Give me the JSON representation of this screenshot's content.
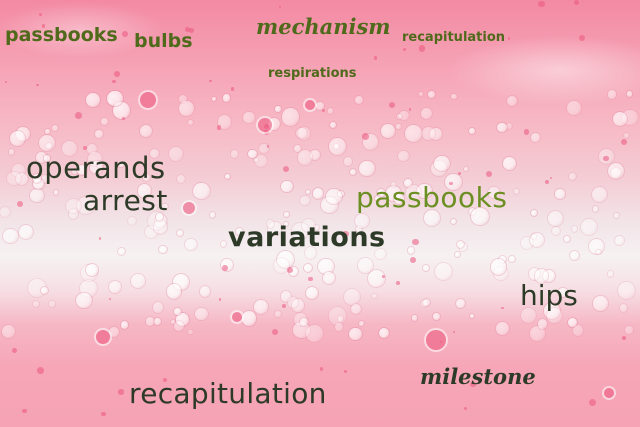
{
  "words": {
    "w1": "passbooks",
    "w2": "bulbs",
    "w3": "mechanism",
    "w4": "recapitulation",
    "w5": "respirations",
    "w6": "operands",
    "w7": "arrest",
    "w8": "passbooks",
    "w9": "variations",
    "w10": "hips",
    "w11": "milestone",
    "w12": "recapitulation"
  },
  "colors": {
    "dark_text": "#2d3a27",
    "olive_text": "#4e6a1a",
    "green_text": "#6b8f22",
    "pink": "#f38aa3",
    "foam": "#f6f1f2"
  }
}
